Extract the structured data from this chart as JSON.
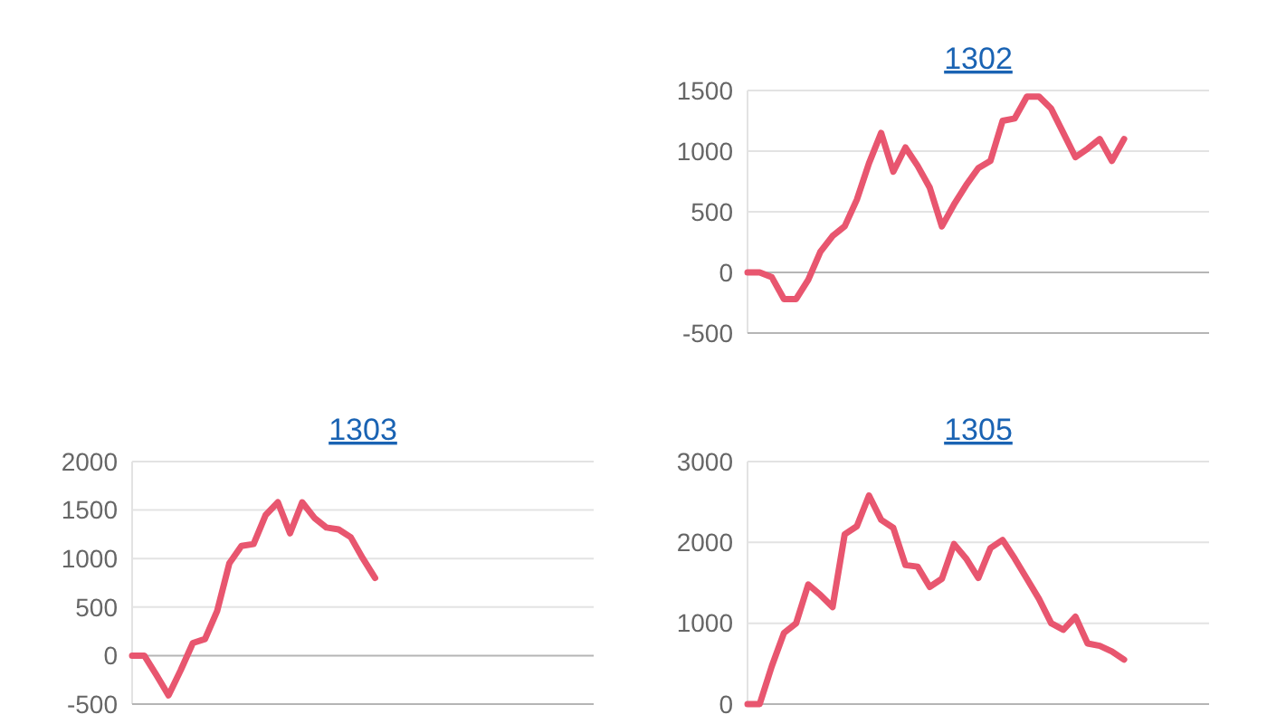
{
  "chart_data": [
    {
      "type": "line",
      "title": "1302",
      "categories": [
        null,
        null,
        null,
        null,
        null,
        null,
        null,
        null,
        null,
        null,
        null,
        null,
        null,
        null,
        null,
        null,
        null,
        null,
        null,
        null,
        null,
        null,
        null,
        null,
        null,
        null,
        null,
        null,
        null,
        null,
        null,
        null,
        null,
        null,
        null,
        null,
        null,
        null,
        null
      ],
      "series": [
        {
          "color": "#e8566f",
          "values": [
            0,
            0,
            -40,
            -220,
            -220,
            -60,
            170,
            300,
            380,
            600,
            900,
            1150,
            830,
            1030,
            880,
            700,
            380,
            560,
            720,
            860,
            920,
            1250,
            1270,
            1450,
            1450,
            1350,
            1150,
            950,
            1020,
            1100,
            920,
            1100,
            null,
            null,
            null,
            null,
            null,
            null,
            null
          ]
        }
      ],
      "ylim": [
        -500,
        1500
      ],
      "yticks": [
        -500,
        0,
        500,
        1000,
        1500
      ],
      "grid": "y",
      "tick_labels": "y",
      "marker": "none"
    },
    {
      "type": "line",
      "title": "1303",
      "categories": [
        null,
        null,
        null,
        null,
        null,
        null,
        null,
        null,
        null,
        null,
        null,
        null,
        null,
        null,
        null,
        null,
        null,
        null,
        null,
        null,
        null,
        null,
        null,
        null,
        null,
        null,
        null,
        null,
        null,
        null,
        null,
        null,
        null,
        null,
        null,
        null,
        null,
        null,
        null
      ],
      "series": [
        {
          "color": "#e8566f",
          "values": [
            0,
            0,
            -200,
            -410,
            -150,
            130,
            170,
            460,
            950,
            1130,
            1150,
            1450,
            1580,
            1260,
            1580,
            1420,
            1320,
            1300,
            1220,
            1000,
            800,
            null,
            null,
            null,
            null,
            null,
            null,
            null,
            null,
            null,
            null,
            null,
            null,
            null,
            null,
            null,
            null,
            null,
            null
          ]
        }
      ],
      "ylim": [
        -500,
        2000
      ],
      "yticks": [
        -500,
        0,
        500,
        1000,
        1500,
        2000
      ],
      "grid": "y",
      "tick_labels": "y",
      "marker": "none"
    },
    {
      "type": "line",
      "title": "1305",
      "categories": [
        null,
        null,
        null,
        null,
        null,
        null,
        null,
        null,
        null,
        null,
        null,
        null,
        null,
        null,
        null,
        null,
        null,
        null,
        null,
        null,
        null,
        null,
        null,
        null,
        null,
        null,
        null,
        null,
        null,
        null,
        null,
        null,
        null,
        null,
        null,
        null,
        null,
        null,
        null
      ],
      "series": [
        {
          "color": "#e8566f",
          "values": [
            0,
            0,
            470,
            880,
            1000,
            1480,
            1350,
            1200,
            2100,
            2200,
            2580,
            2280,
            2180,
            1720,
            1700,
            1450,
            1550,
            1980,
            1800,
            1560,
            1930,
            2030,
            1800,
            1550,
            1300,
            1000,
            920,
            1080,
            750,
            720,
            650,
            550,
            null,
            null,
            null,
            null,
            null,
            null,
            null
          ]
        }
      ],
      "ylim": [
        0,
        3000
      ],
      "yticks": [
        0,
        1000,
        2000,
        3000
      ],
      "grid": "y",
      "tick_labels": "y",
      "marker": "none"
    }
  ]
}
